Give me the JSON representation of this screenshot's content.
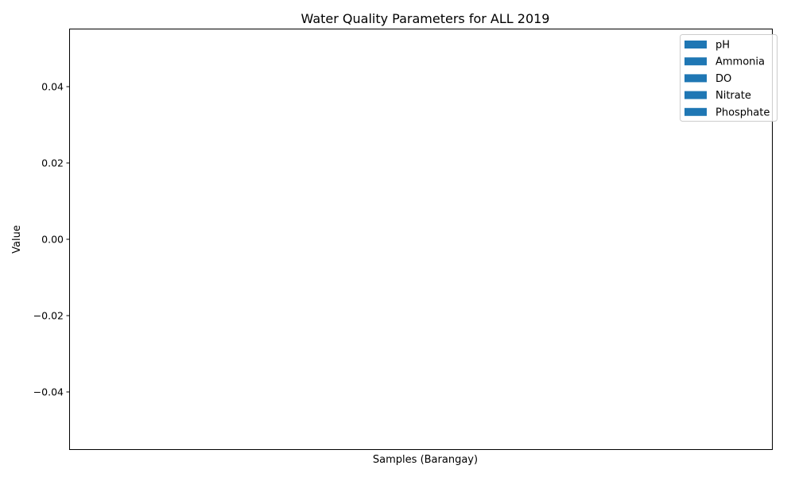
{
  "chart_data": {
    "type": "bar",
    "title": "Water Quality Parameters for ALL 2019",
    "xlabel": "Samples (Barangay)",
    "ylabel": "Value",
    "categories": [],
    "series": [
      {
        "name": "pH",
        "values": []
      },
      {
        "name": "Ammonia",
        "values": []
      },
      {
        "name": "DO",
        "values": []
      },
      {
        "name": "Nitrate",
        "values": []
      },
      {
        "name": "Phosphate",
        "values": []
      }
    ],
    "ylim": [
      -0.055,
      0.055
    ],
    "yticks": [
      -0.04,
      -0.02,
      0.0,
      0.02,
      0.04
    ],
    "ytick_labels": [
      "−0.04",
      "−0.02",
      "0.00",
      "0.02",
      "0.04"
    ],
    "legend_position": "top-right",
    "grid": false,
    "colors": {
      "series": "#1f77b4",
      "axes": "#000000",
      "background": "#ffffff"
    }
  }
}
